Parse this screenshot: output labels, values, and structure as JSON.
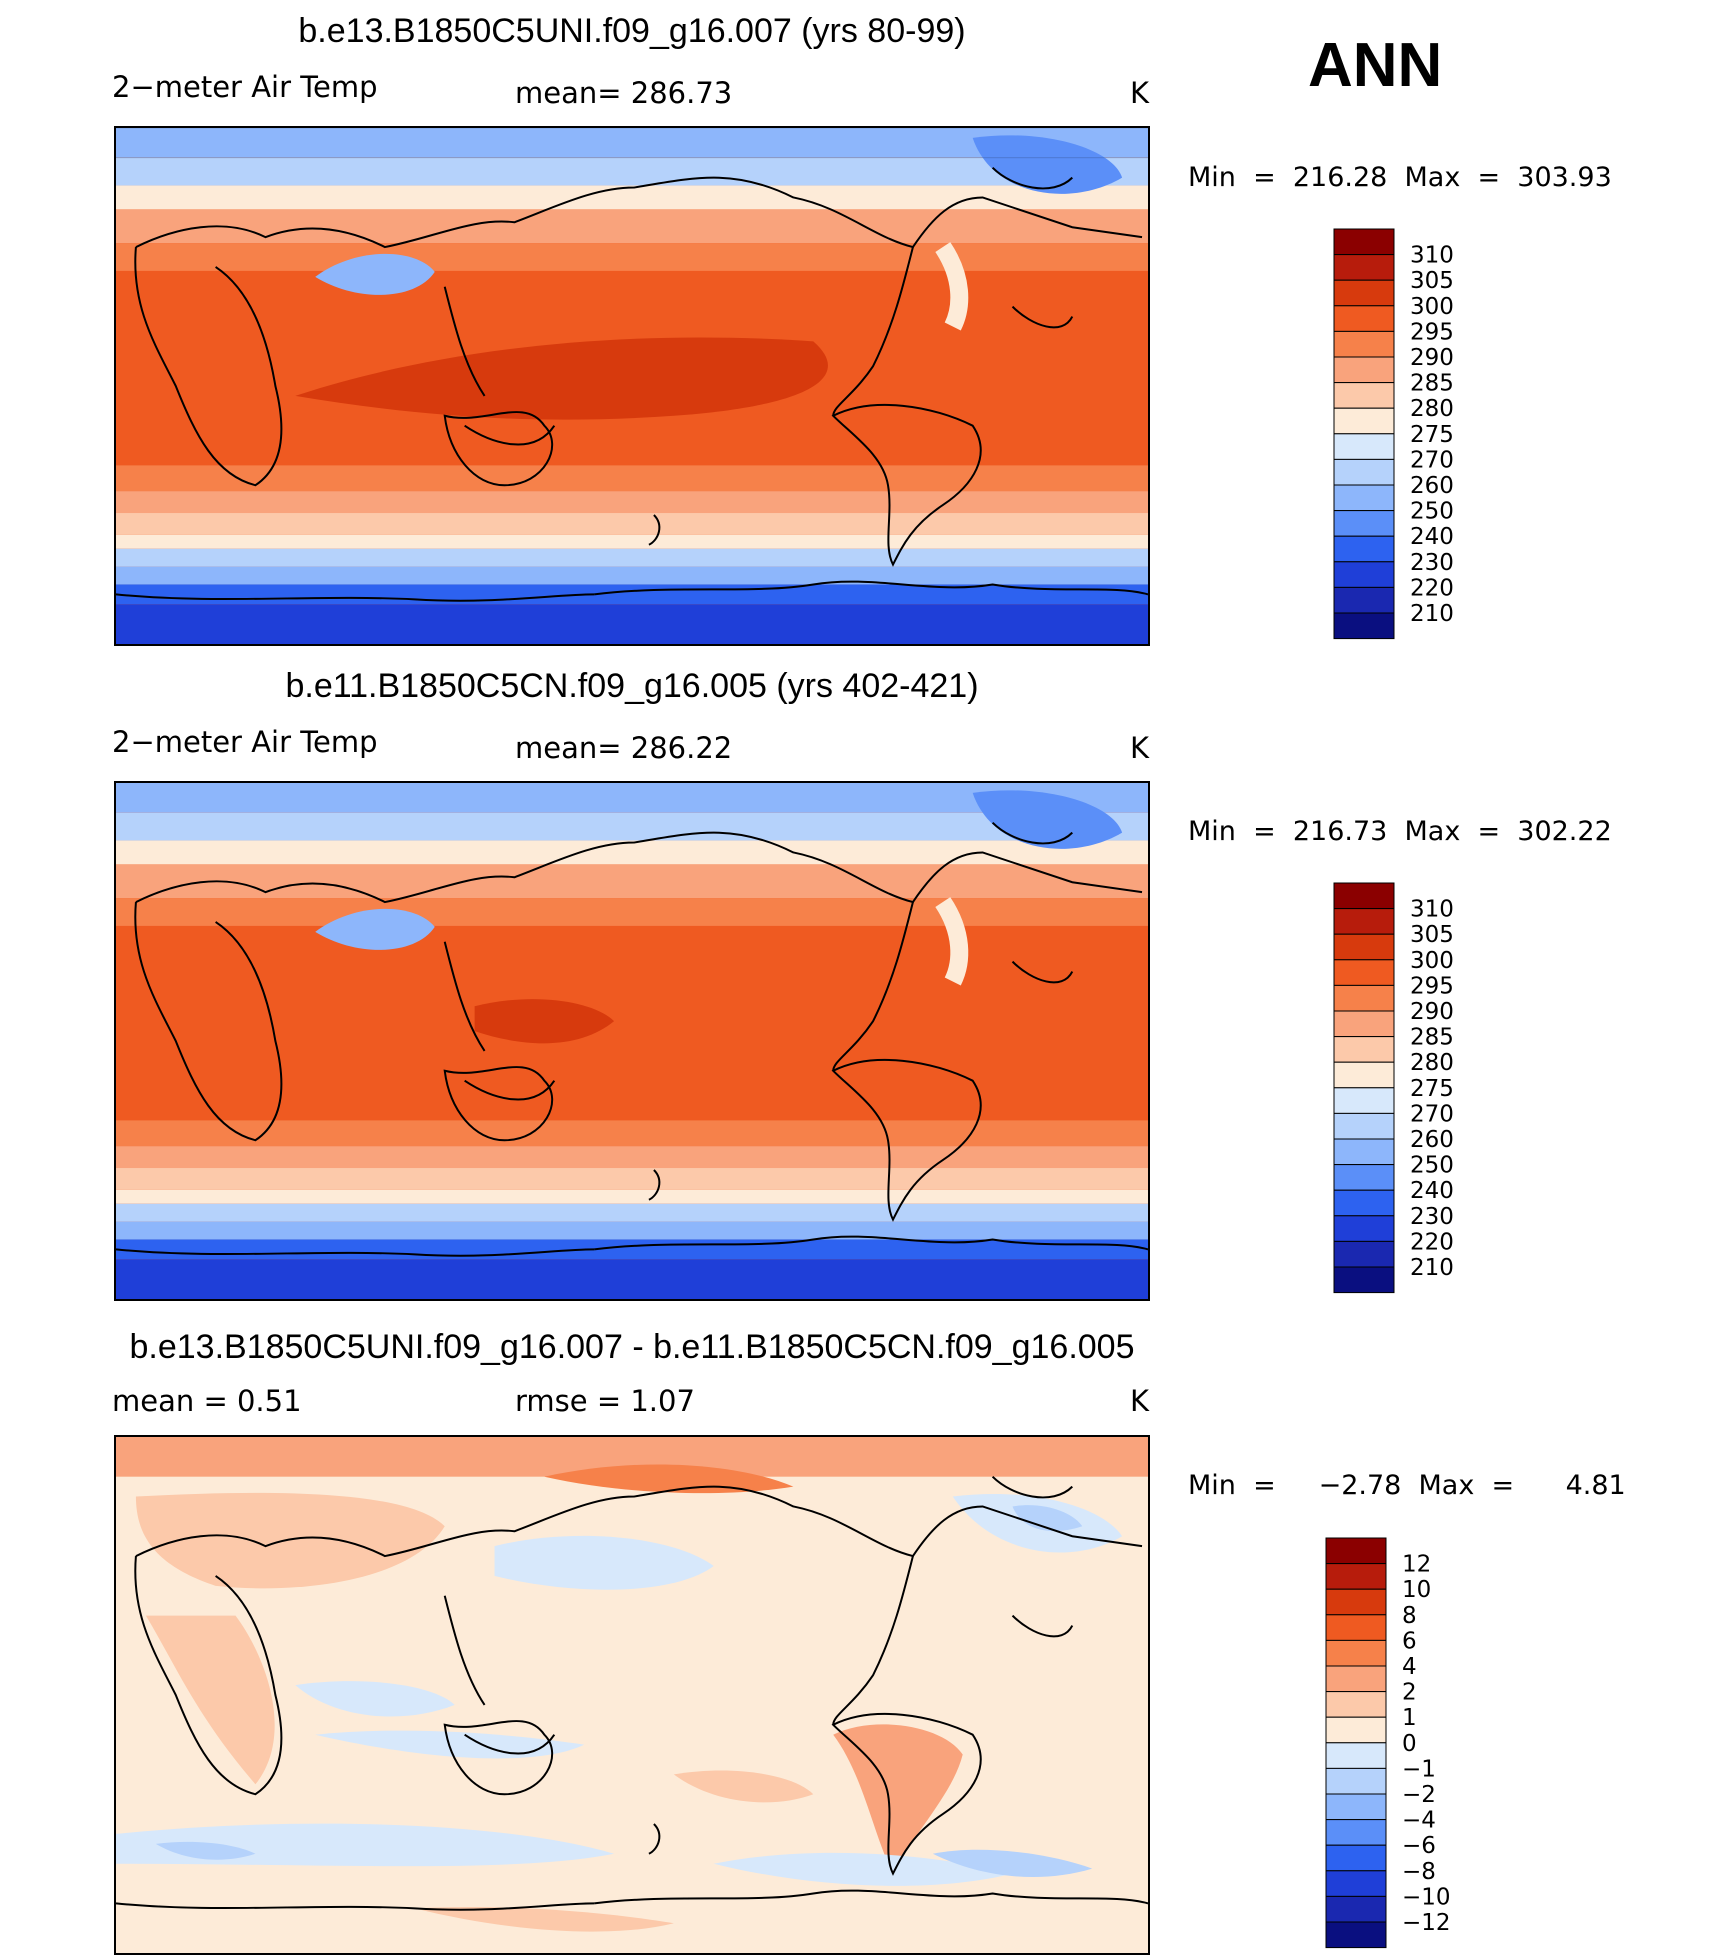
{
  "season": "ANN",
  "panels": [
    {
      "title": "b.e13.B1850C5UNI.f09_g16.007 (yrs 80-99)",
      "left_label": "2−meter Air Temp",
      "stat_label": "mean=  286.73",
      "units": "K",
      "minmax": "Min  =  216.28  Max  =  303.93",
      "kind": "abs",
      "colorbar": {
        "labels": [
          "310",
          "305",
          "300",
          "295",
          "290",
          "285",
          "280",
          "275",
          "270",
          "260",
          "250",
          "240",
          "230",
          "220",
          "210"
        ],
        "colors": [
          "#8b0000",
          "#b71c0c",
          "#d73a0d",
          "#ef5a21",
          "#f6814a",
          "#f9a37c",
          "#fcc9aa",
          "#fdebd8",
          "#d7e8fb",
          "#b5d2fb",
          "#8db6fb",
          "#5b8ff8",
          "#2d62f0",
          "#1f3fd8",
          "#1a28b0",
          "#0a0f80"
        ]
      }
    },
    {
      "title": "b.e11.B1850C5CN.f09_g16.005 (yrs 402-421)",
      "left_label": "2−meter Air Temp",
      "stat_label": "mean=  286.22",
      "units": "K",
      "minmax": "Min  =  216.73  Max  =  302.22",
      "kind": "abs",
      "colorbar": {
        "labels": [
          "310",
          "305",
          "300",
          "295",
          "290",
          "285",
          "280",
          "275",
          "270",
          "260",
          "250",
          "240",
          "230",
          "220",
          "210"
        ],
        "colors": [
          "#8b0000",
          "#b71c0c",
          "#d73a0d",
          "#ef5a21",
          "#f6814a",
          "#f9a37c",
          "#fcc9aa",
          "#fdebd8",
          "#d7e8fb",
          "#b5d2fb",
          "#8db6fb",
          "#5b8ff8",
          "#2d62f0",
          "#1f3fd8",
          "#1a28b0",
          "#0a0f80"
        ]
      }
    },
    {
      "title": "b.e13.B1850C5UNI.f09_g16.007 - b.e11.B1850C5CN.f09_g16.005",
      "left_label": "mean  =      0.51",
      "stat_label": "rmse  =      1.07",
      "units": "K",
      "minmax": "Min  =     −2.78  Max  =      4.81",
      "kind": "diff",
      "colorbar": {
        "labels": [
          "12",
          "10",
          "8",
          "6",
          "4",
          "2",
          "1",
          "0",
          "−1",
          "−2",
          "−4",
          "−6",
          "−8",
          "−10",
          "−12"
        ],
        "colors": [
          "#8b0000",
          "#b71c0c",
          "#d73a0d",
          "#ef5a21",
          "#f6814a",
          "#f9a37c",
          "#fcc9aa",
          "#fdebd8",
          "#d7e8fb",
          "#b5d2fb",
          "#8db6fb",
          "#5b8ff8",
          "#2d62f0",
          "#1f3fd8",
          "#1a28b0",
          "#0a0f80"
        ]
      }
    }
  ]
}
